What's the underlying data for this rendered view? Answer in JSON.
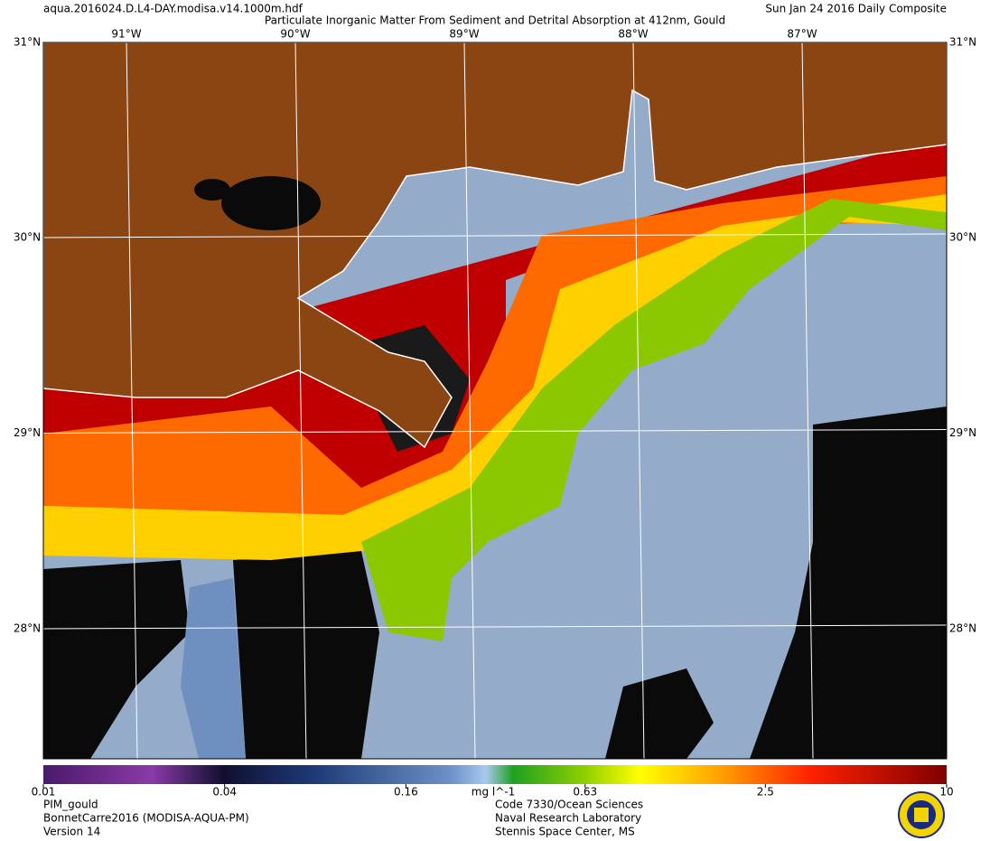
{
  "header": {
    "filename": "aqua.2016024.D.L4-DAY.modisa.v14.1000m.hdf",
    "title": "Particulate Inorganic Matter From Sediment and Detrital Absorption at 412nm, Gould",
    "date": "Sun Jan 24 2016 Daily Composite"
  },
  "map": {
    "lon_labels": [
      "91°W",
      "90°W",
      "89°W",
      "88°W",
      "87°W"
    ],
    "corner_label": "31°N",
    "lat_labels": [
      "30°N",
      "29°N",
      "28°N"
    ]
  },
  "colorbar": {
    "scale": "log",
    "lim": [
      0.01,
      10
    ],
    "ticks": [
      0.01,
      0.04,
      0.16,
      0.63,
      2.5,
      10
    ],
    "unit": "mg l^-1"
  },
  "footer": {
    "left": [
      "PIM_gould",
      "BonnetCarre2016 (MODISA-AQUA-PM)",
      "Version 14"
    ],
    "center": [
      "Code 7330/Ocean Sciences",
      "Naval Research Laboratory",
      "Stennis Space Center, MS"
    ]
  }
}
